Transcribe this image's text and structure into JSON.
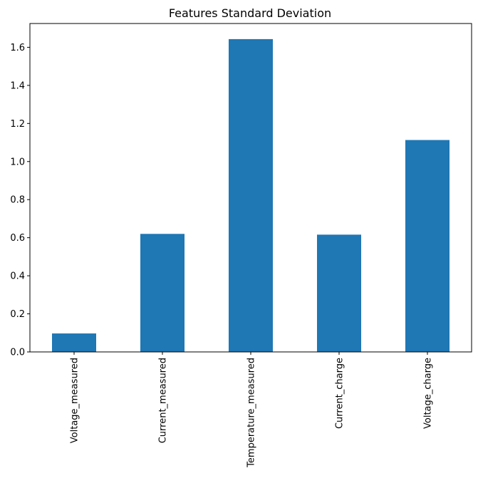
{
  "chart_data": {
    "type": "bar",
    "title": "Features Standard Deviation",
    "xlabel": "",
    "ylabel": "",
    "categories": [
      "Voltage_measured",
      "Current_measured",
      "Temperature_measured",
      "Current_charge",
      "Voltage_charge"
    ],
    "values": [
      0.097,
      0.62,
      1.643,
      0.616,
      1.113
    ],
    "ylim": [
      0,
      1.725
    ],
    "yticks": [
      "0.0",
      "0.2",
      "0.4",
      "0.6",
      "0.8",
      "1.0",
      "1.2",
      "1.4",
      "1.6"
    ],
    "grid": false,
    "bar_color": "#1f77b4"
  }
}
